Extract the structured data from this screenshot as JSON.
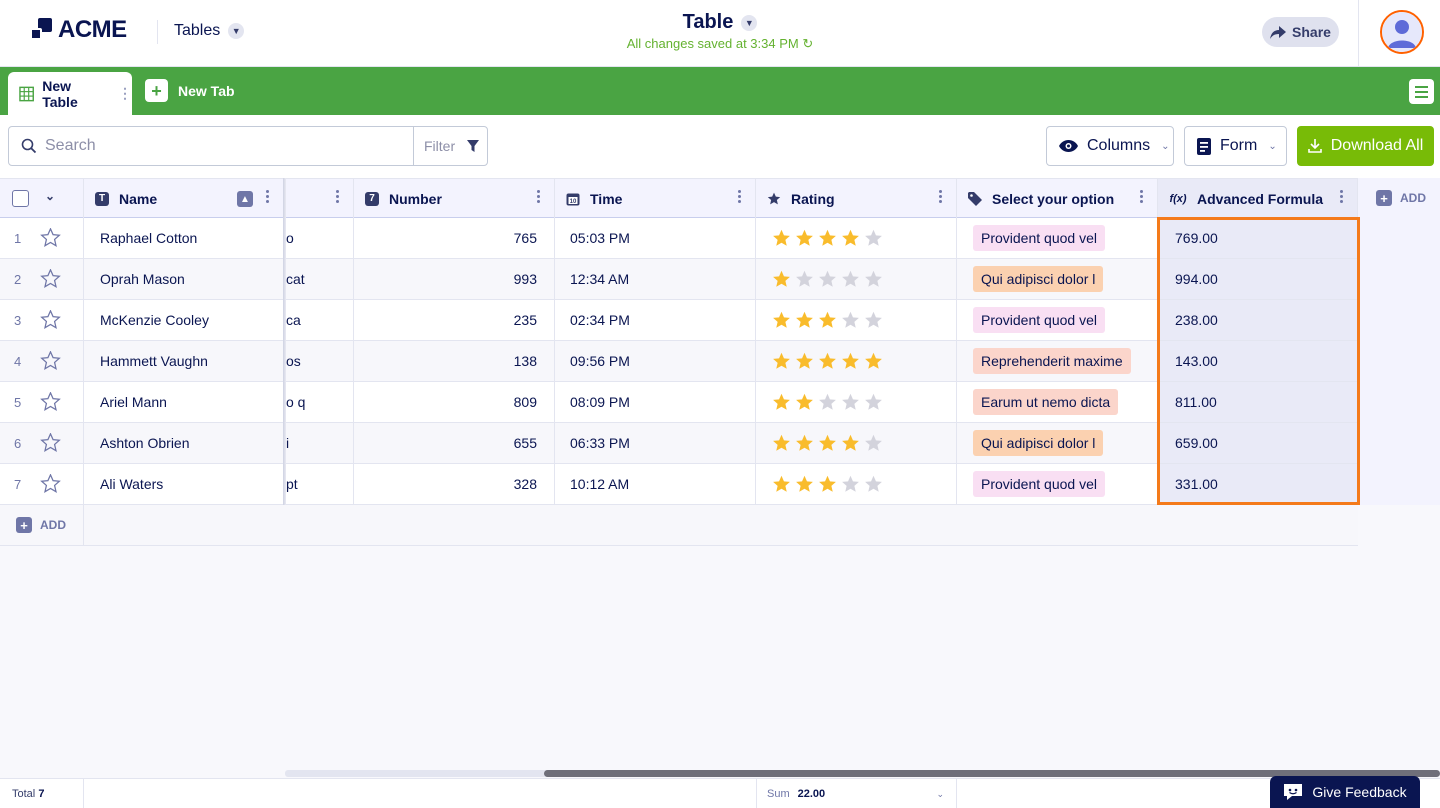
{
  "header": {
    "logo_text": "ACME",
    "tables_label": "Tables",
    "title": "Table",
    "saved_status": "All changes saved at 3:34 PM",
    "share_label": "Share"
  },
  "tabs": {
    "active_label": "New Table",
    "new_tab_label": "New Tab"
  },
  "toolbar": {
    "search_placeholder": "Search",
    "filter_label": "Filter",
    "columns_label": "Columns",
    "form_label": "Form",
    "download_label": "Download All"
  },
  "columns": {
    "name": "Name",
    "number": "Number",
    "time": "Time",
    "rating": "Rating",
    "select": "Select your option",
    "formula": "Advanced Formula",
    "add": "ADD"
  },
  "rows": [
    {
      "num": "1",
      "name": "Raphael Cotton",
      "partial": "o",
      "number": "765",
      "time": "05:03 PM",
      "rating": 4,
      "option": "Provident quod vel",
      "option_color": "pink",
      "formula": "769.00"
    },
    {
      "num": "2",
      "name": "Oprah Mason",
      "partial": "cat",
      "number": "993",
      "time": "12:34 AM",
      "rating": 1,
      "option": "Qui adipisci dolor l",
      "option_color": "orange",
      "formula": "994.00"
    },
    {
      "num": "3",
      "name": "McKenzie Cooley",
      "partial": "ca",
      "number": "235",
      "time": "02:34 PM",
      "rating": 3,
      "option": "Provident quod vel",
      "option_color": "pink",
      "formula": "238.00"
    },
    {
      "num": "4",
      "name": "Hammett Vaughn",
      "partial": "os",
      "number": "138",
      "time": "09:56 PM",
      "rating": 5,
      "option": "Reprehenderit maxime",
      "option_color": "salmon",
      "formula": "143.00"
    },
    {
      "num": "5",
      "name": "Ariel Mann",
      "partial": "o q",
      "number": "809",
      "time": "08:09 PM",
      "rating": 2,
      "option": "Earum ut nemo dicta",
      "option_color": "salmon",
      "formula": "811.00"
    },
    {
      "num": "6",
      "name": "Ashton Obrien",
      "partial": "i",
      "number": "655",
      "time": "06:33 PM",
      "rating": 4,
      "option": "Qui adipisci dolor l",
      "option_color": "orange",
      "formula": "659.00"
    },
    {
      "num": "7",
      "name": "Ali Waters",
      "partial": "pt",
      "number": "328",
      "time": "10:12 AM",
      "rating": 3,
      "option": "Provident quod vel",
      "option_color": "pink",
      "formula": "331.00"
    }
  ],
  "add_row_label": "ADD",
  "footer": {
    "total_label": "Total",
    "total_value": "7",
    "sum_label": "Sum",
    "sum_value": "22.00",
    "feedback_label": "Give Feedback"
  },
  "colors": {
    "brand_green": "#4aa443",
    "download_green": "#78bb07",
    "navy": "#0a1551",
    "highlight_orange": "#f47a1a",
    "star_gold": "#f9bc2c",
    "star_gray": "#d3d3dc"
  },
  "icons": {
    "search": "search-icon",
    "filter": "filter-icon",
    "columns": "eye-icon",
    "form": "form-icon",
    "download": "download-icon",
    "share": "share-arrow-icon",
    "feedback": "feedback-icon"
  }
}
